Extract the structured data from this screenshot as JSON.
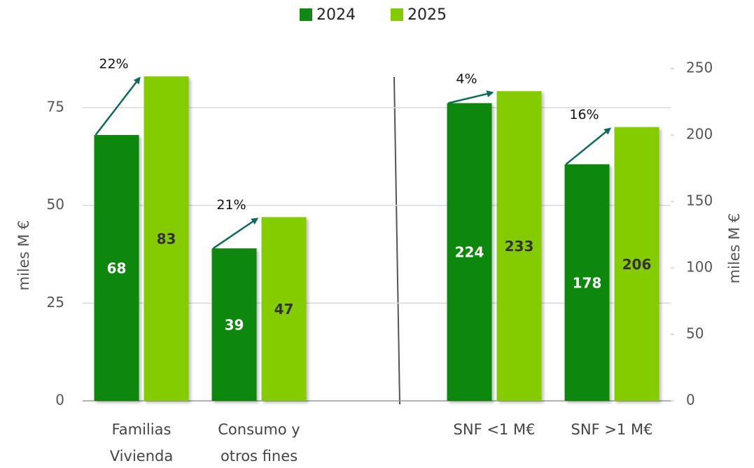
{
  "chart_data": {
    "type": "bar",
    "categories": [
      "Familias Vivienda",
      "Consumo y otros fines",
      null,
      "SNF <1 M€",
      "SNF >1 M€"
    ],
    "category_axis": [
      "y",
      "y",
      null,
      "y2",
      "y2"
    ],
    "series": [
      {
        "name": "2024",
        "color": "#118811",
        "values": [
          68,
          39,
          null,
          224,
          178
        ]
      },
      {
        "name": "2025",
        "color": "#84cc00",
        "values": [
          83,
          47,
          null,
          233,
          206
        ]
      }
    ],
    "growth_labels": [
      "22%",
      "21%",
      null,
      "4%",
      "16%"
    ],
    "ylabel": "miles M €",
    "y2label": "miles M €",
    "ylim": [
      0,
      85
    ],
    "yticks": [
      0,
      25,
      50,
      75
    ],
    "y2lim": [
      0,
      250
    ],
    "y2ticks": [
      0,
      50,
      100,
      150,
      200,
      250
    ],
    "grid": true,
    "legend": "top"
  }
}
